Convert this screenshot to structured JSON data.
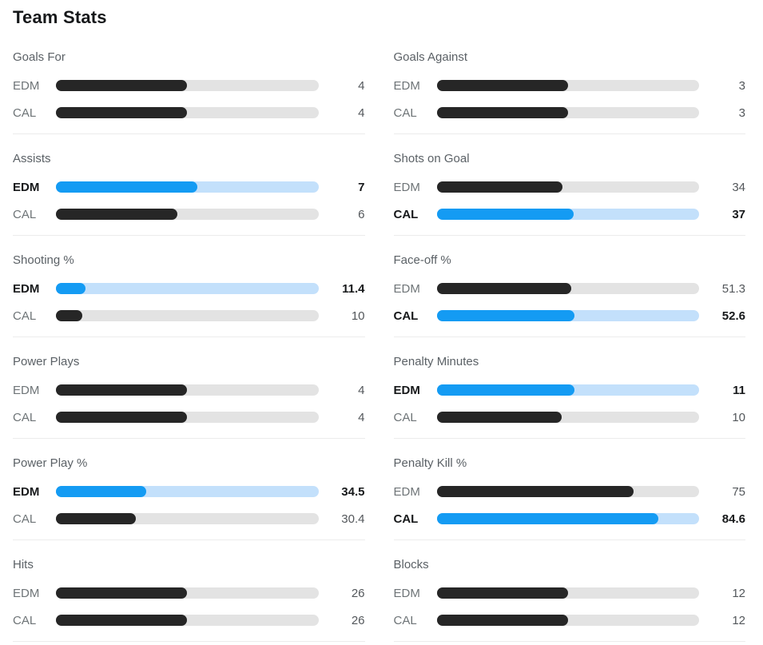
{
  "page_title": "Team Stats",
  "teams": [
    "EDM",
    "CAL"
  ],
  "colors": {
    "accent_blue": "#149bf3",
    "accent_blue_track": "#c3e0fb",
    "bar_dark": "#262626",
    "bar_track_gray": "#e3e3e3",
    "divider": "#ececec",
    "text_dark": "#16181a",
    "text_gray": "#6e7477"
  },
  "chart_data": {
    "type": "bar",
    "title": "Team Stats",
    "categories": [
      "Goals For",
      "Goals Against",
      "Assists",
      "Shots on Goal",
      "Shooting %",
      "Face-off %",
      "Power Plays",
      "Penalty Minutes",
      "Power Play %",
      "Penalty Kill %",
      "Hits",
      "Blocks"
    ],
    "series": [
      {
        "name": "EDM",
        "values": [
          4,
          3,
          7,
          34,
          11.4,
          51.3,
          4,
          11,
          34.5,
          75,
          26,
          12
        ]
      },
      {
        "name": "CAL",
        "values": [
          4,
          3,
          6,
          37,
          10,
          52.6,
          4,
          10,
          30.4,
          84.6,
          26,
          12
        ]
      }
    ],
    "highlighted_leader_per_category": [
      "tie",
      "tie",
      "EDM",
      "CAL",
      "EDM",
      "CAL",
      "tie",
      "EDM",
      "EDM",
      "CAL",
      "tie",
      "tie"
    ],
    "layout": "two-column grid, left column categories 0,2,4,6,8,10; right column 1,3,5,7,9,11; horizontal paired bars, leader shown in blue bold"
  },
  "sections": [
    {
      "label": "Goals For",
      "rows": [
        {
          "team": "EDM",
          "value": "4",
          "variant": "normal",
          "fill_pct": "50%"
        },
        {
          "team": "CAL",
          "value": "4",
          "variant": "normal",
          "fill_pct": "50%"
        }
      ]
    },
    {
      "label": "Goals Against",
      "rows": [
        {
          "team": "EDM",
          "value": "3",
          "variant": "normal",
          "fill_pct": "50%"
        },
        {
          "team": "CAL",
          "value": "3",
          "variant": "normal",
          "fill_pct": "50%"
        }
      ]
    },
    {
      "label": "Assists",
      "rows": [
        {
          "team": "EDM",
          "value": "7",
          "variant": "lead",
          "fill_pct": "53.8%"
        },
        {
          "team": "CAL",
          "value": "6",
          "variant": "normal",
          "fill_pct": "46.2%"
        }
      ]
    },
    {
      "label": "Shots on Goal",
      "rows": [
        {
          "team": "EDM",
          "value": "34",
          "variant": "normal",
          "fill_pct": "47.9%"
        },
        {
          "team": "CAL",
          "value": "37",
          "variant": "lead",
          "fill_pct": "52.1%"
        }
      ]
    },
    {
      "label": "Shooting %",
      "rows": [
        {
          "team": "EDM",
          "value": "11.4",
          "variant": "lead",
          "fill_pct": "11.4%"
        },
        {
          "team": "CAL",
          "value": "10",
          "variant": "normal",
          "fill_pct": "10%"
        }
      ]
    },
    {
      "label": "Face-off %",
      "rows": [
        {
          "team": "EDM",
          "value": "51.3",
          "variant": "normal",
          "fill_pct": "51.3%"
        },
        {
          "team": "CAL",
          "value": "52.6",
          "variant": "lead",
          "fill_pct": "52.6%"
        }
      ]
    },
    {
      "label": "Power Plays",
      "rows": [
        {
          "team": "EDM",
          "value": "4",
          "variant": "normal",
          "fill_pct": "50%"
        },
        {
          "team": "CAL",
          "value": "4",
          "variant": "normal",
          "fill_pct": "50%"
        }
      ]
    },
    {
      "label": "Penalty Minutes",
      "rows": [
        {
          "team": "EDM",
          "value": "11",
          "variant": "lead",
          "fill_pct": "52.4%"
        },
        {
          "team": "CAL",
          "value": "10",
          "variant": "normal",
          "fill_pct": "47.6%"
        }
      ]
    },
    {
      "label": "Power Play %",
      "rows": [
        {
          "team": "EDM",
          "value": "34.5",
          "variant": "lead",
          "fill_pct": "34.5%"
        },
        {
          "team": "CAL",
          "value": "30.4",
          "variant": "normal",
          "fill_pct": "30.4%"
        }
      ]
    },
    {
      "label": "Penalty Kill %",
      "rows": [
        {
          "team": "EDM",
          "value": "75",
          "variant": "normal",
          "fill_pct": "75%"
        },
        {
          "team": "CAL",
          "value": "84.6",
          "variant": "lead",
          "fill_pct": "84.6%"
        }
      ]
    },
    {
      "label": "Hits",
      "rows": [
        {
          "team": "EDM",
          "value": "26",
          "variant": "normal",
          "fill_pct": "50%"
        },
        {
          "team": "CAL",
          "value": "26",
          "variant": "normal",
          "fill_pct": "50%"
        }
      ]
    },
    {
      "label": "Blocks",
      "rows": [
        {
          "team": "EDM",
          "value": "12",
          "variant": "normal",
          "fill_pct": "50%"
        },
        {
          "team": "CAL",
          "value": "12",
          "variant": "normal",
          "fill_pct": "50%"
        }
      ]
    }
  ]
}
